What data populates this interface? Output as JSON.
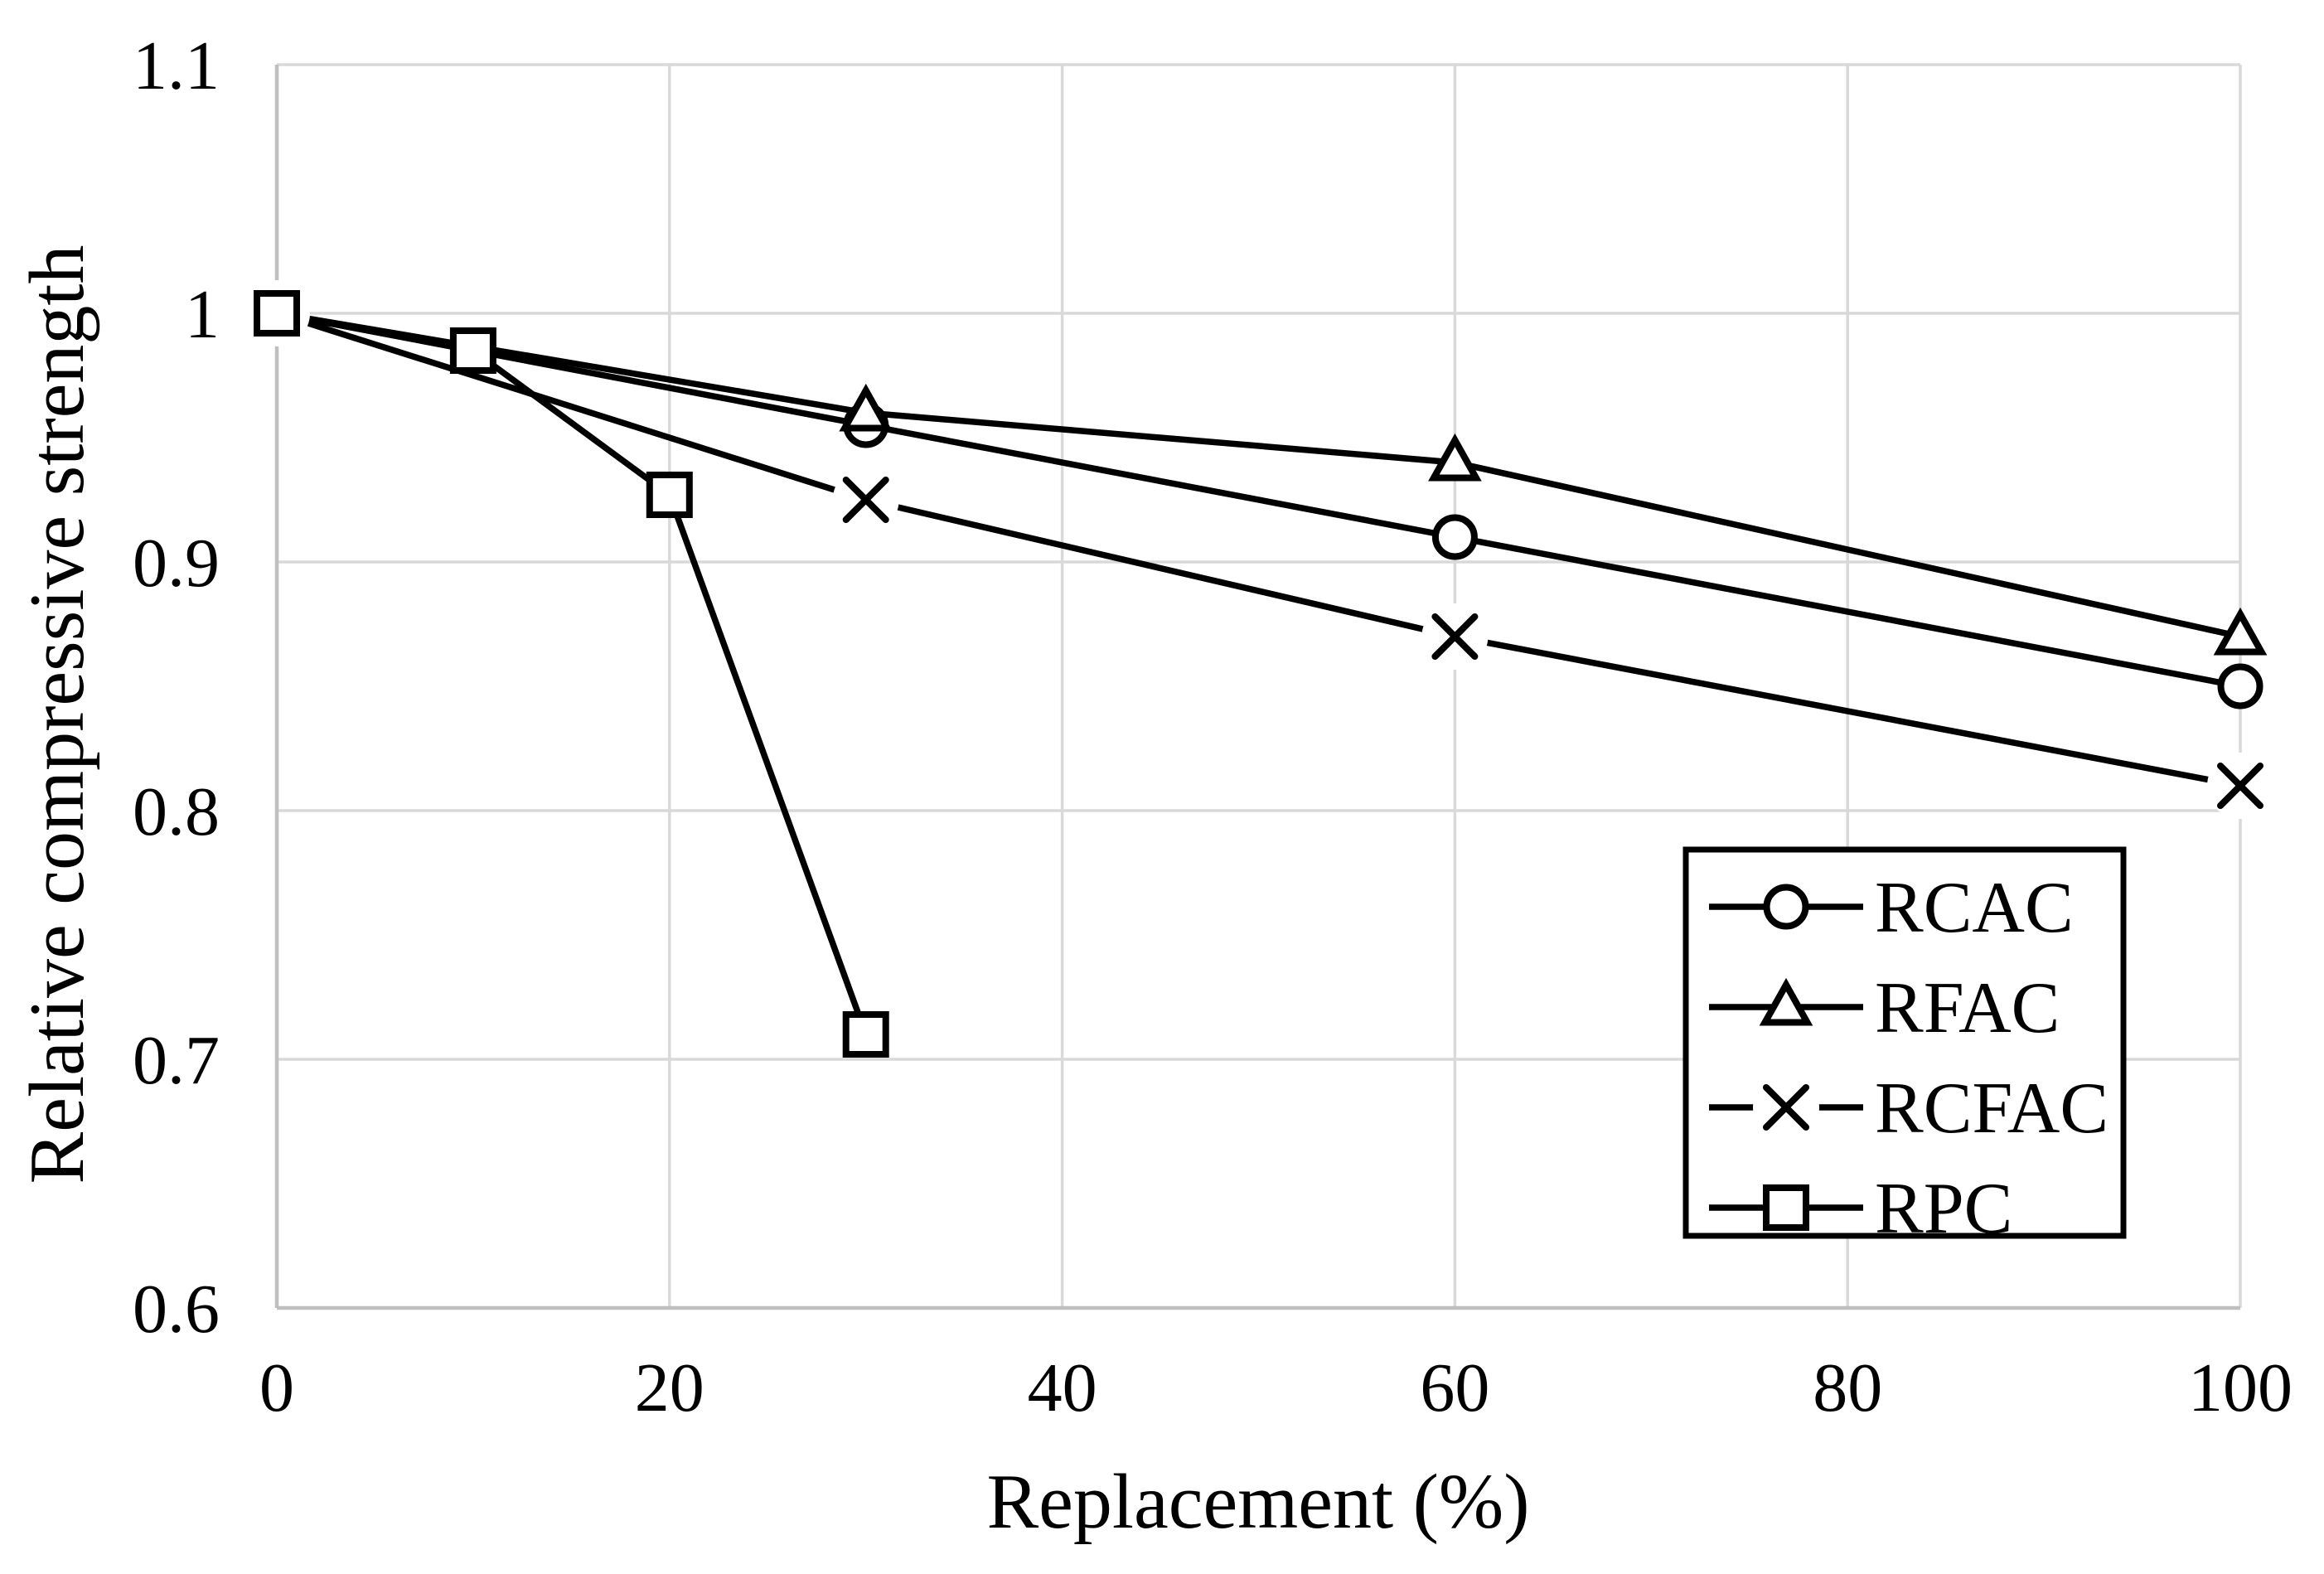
{
  "figure": {
    "background": "#ffffff",
    "text_color": "#000000"
  },
  "chart_data": {
    "type": "line",
    "title": "",
    "xlabel": "Replacement (%)",
    "ylabel": "Relative compressive strength",
    "xlim": [
      0,
      100
    ],
    "ylim": [
      0.6,
      1.1
    ],
    "grid": true,
    "xticks": [
      0,
      20,
      40,
      60,
      80,
      100
    ],
    "xtick_labels": [
      "0",
      "20",
      "40",
      "60",
      "80",
      "100"
    ],
    "ytick_values": [
      1.1,
      1.0,
      0.9,
      0.8,
      0.7,
      0.6
    ],
    "ytick_labels": [
      "1.1",
      "1",
      "0.9",
      "0.8",
      "0.7",
      "0.6"
    ],
    "colors": {
      "series_stroke": "#000000",
      "marker_fill": "#ffffff",
      "grid": "#d9d9d9",
      "axis": "#bfbfbf",
      "legend_border": "#000000",
      "legend_fill": "#ffffff"
    },
    "legend": {
      "position": "inside-bottom-right",
      "entries": [
        "RCAC",
        "RFAC",
        "RCFAC",
        "RPC"
      ]
    },
    "series": [
      {
        "name": "RCAC",
        "marker": "circle",
        "x": [
          0,
          30,
          60,
          100
        ],
        "y": [
          1.0,
          0.955,
          0.91,
          0.85
        ]
      },
      {
        "name": "RFAC",
        "marker": "triangle",
        "x": [
          0,
          30,
          60,
          100
        ],
        "y": [
          1.0,
          0.96,
          0.94,
          0.87
        ]
      },
      {
        "name": "RCFAC",
        "marker": "x",
        "x": [
          0,
          30,
          60,
          100
        ],
        "y": [
          1.0,
          0.925,
          0.87,
          0.81
        ]
      },
      {
        "name": "RPC",
        "marker": "square",
        "x": [
          0,
          10,
          20,
          30
        ],
        "y": [
          1.0,
          0.985,
          0.927,
          0.71
        ]
      }
    ]
  }
}
